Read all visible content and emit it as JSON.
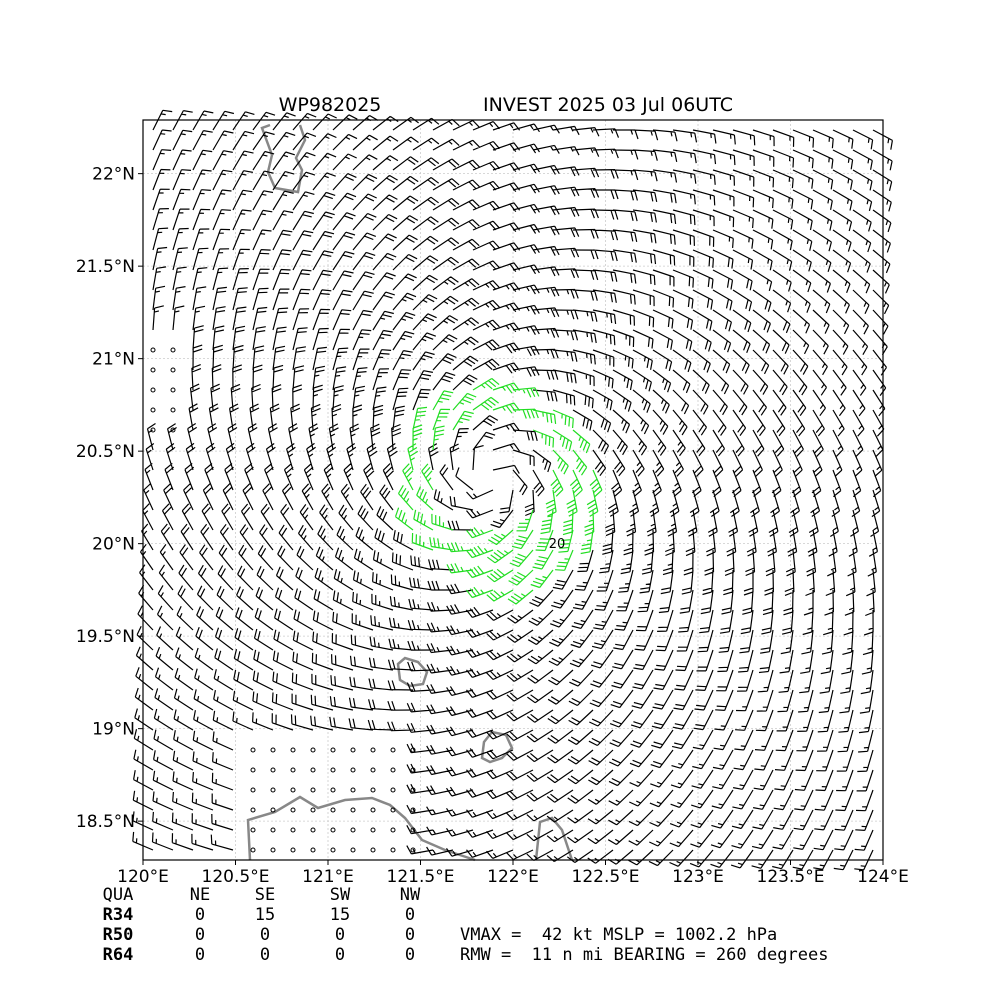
{
  "chart_data": {
    "type": "map",
    "title": "WP982025",
    "subtitle": "INVEST 2025 03 Jul 06UTC",
    "xlim": [
      120,
      124
    ],
    "ylim": [
      18.29,
      22.29
    ],
    "xticks": [
      {
        "value": 120,
        "label": "120°E"
      },
      {
        "value": 120.5,
        "label": "120.5°E"
      },
      {
        "value": 121,
        "label": "121°E"
      },
      {
        "value": 121.5,
        "label": "121.5°E"
      },
      {
        "value": 122,
        "label": "122°E"
      },
      {
        "value": 122.5,
        "label": "122.5°E"
      },
      {
        "value": 123,
        "label": "123°E"
      },
      {
        "value": 123.5,
        "label": "123.5°E"
      },
      {
        "value": 124,
        "label": "124°E"
      }
    ],
    "yticks": [
      {
        "value": 18.5,
        "label": "18.5°N"
      },
      {
        "value": 19,
        "label": "19°N"
      },
      {
        "value": 19.5,
        "label": "19.5°N"
      },
      {
        "value": 20,
        "label": "20°N"
      },
      {
        "value": 20.5,
        "label": "20.5°N"
      },
      {
        "value": 21,
        "label": "21°N"
      },
      {
        "value": 21.5,
        "label": "21.5°N"
      },
      {
        "value": 22,
        "label": "22°N"
      }
    ],
    "grid": true,
    "center_label": "20"
  },
  "wind_radii": {
    "header": [
      "QUA",
      "NE",
      "SE",
      "SW",
      "NW"
    ],
    "rows": [
      [
        "R34",
        0,
        15,
        15,
        0
      ],
      [
        "R50",
        0,
        0,
        0,
        0
      ],
      [
        "R64",
        0,
        0,
        0,
        0
      ]
    ]
  },
  "stats": [
    "VMAX =  42 kt MSLP = 1002.2 hPa",
    "RMW =  11 n mi BEARING = 260 degrees"
  ]
}
